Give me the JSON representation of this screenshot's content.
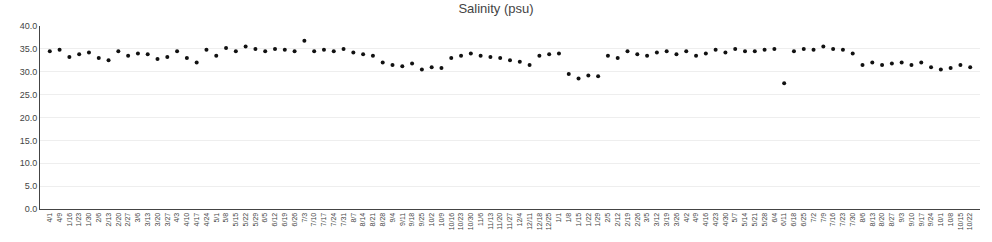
{
  "chart_data": {
    "type": "scatter",
    "title": "Salinity (psu)",
    "categories": [
      "4/1",
      "4/9",
      "1/16",
      "1/23",
      "1/30",
      "2/6",
      "2/13",
      "2/20",
      "2/27",
      "3/6",
      "3/13",
      "3/20",
      "3/27",
      "4/3",
      "4/10",
      "4/17",
      "4/24",
      "5/1",
      "5/8",
      "5/15",
      "5/22",
      "5/29",
      "6/5",
      "6/12",
      "6/19",
      "6/26",
      "7/3",
      "7/10",
      "7/17",
      "7/24",
      "7/31",
      "8/7",
      "8/14",
      "8/21",
      "8/28",
      "9/4",
      "9/11",
      "9/18",
      "9/25",
      "10/2",
      "10/9",
      "10/16",
      "10/23",
      "10/30",
      "11/6",
      "11/13",
      "11/20",
      "11/27",
      "12/4",
      "12/11",
      "12/18",
      "12/25",
      "1/1",
      "1/8",
      "1/15",
      "1/22",
      "1/29",
      "2/5",
      "2/12",
      "2/19",
      "2/26",
      "3/5",
      "3/12",
      "3/19",
      "3/26",
      "4/2",
      "4/9",
      "4/16",
      "4/23",
      "4/30",
      "5/7",
      "5/14",
      "5/21",
      "5/28",
      "6/4",
      "6/11",
      "6/18",
      "6/25",
      "7/2",
      "7/9",
      "7/16",
      "7/23",
      "7/30",
      "8/6",
      "8/13",
      "8/20",
      "8/27",
      "9/3",
      "9/10",
      "9/17",
      "9/24",
      "10/1",
      "10/8",
      "10/15",
      "10/22"
    ],
    "values": [
      34.5,
      34.8,
      33.2,
      33.8,
      34.2,
      33.0,
      32.5,
      34.5,
      33.5,
      34.0,
      33.8,
      32.8,
      33.2,
      34.5,
      33.0,
      32.0,
      34.8,
      33.5,
      35.2,
      34.5,
      35.5,
      35.0,
      34.5,
      35.0,
      34.8,
      34.5,
      36.8,
      34.5,
      34.8,
      34.5,
      35.0,
      34.2,
      33.8,
      33.5,
      32.0,
      31.5,
      31.2,
      31.8,
      30.5,
      31.0,
      30.8,
      33.0,
      33.5,
      34.0,
      33.5,
      33.2,
      33.0,
      32.5,
      32.2,
      31.5,
      33.5,
      33.8,
      34.0,
      29.5,
      28.5,
      29.2,
      29.0,
      33.5,
      33.0,
      34.5,
      33.8,
      33.5,
      34.2,
      34.5,
      33.8,
      34.5,
      33.5,
      34.0,
      34.8,
      34.2,
      35.0,
      34.5,
      34.5,
      34.8,
      35.0,
      27.5,
      34.5,
      35.0,
      34.8,
      35.5,
      35.0,
      34.8,
      34.0,
      31.5,
      32.0,
      31.5,
      31.8,
      32.0,
      31.5,
      32.0,
      31.0,
      30.5,
      30.8,
      31.5,
      31.0
    ],
    "color": "#111111",
    "marker": "circle",
    "ylim": [
      0.0,
      40.0
    ],
    "yticks": [
      {
        "value": 0,
        "label": "0.0"
      },
      {
        "value": 5,
        "label": "5.0"
      },
      {
        "value": 10,
        "label": "10.0"
      },
      {
        "value": 15,
        "label": "15.0"
      },
      {
        "value": 20,
        "label": "20.0"
      },
      {
        "value": 25,
        "label": "25.0"
      },
      {
        "value": 30,
        "label": "30.0"
      },
      {
        "value": 35,
        "label": "35.0"
      },
      {
        "value": 40,
        "label": "40.0"
      }
    ],
    "grid": true
  }
}
